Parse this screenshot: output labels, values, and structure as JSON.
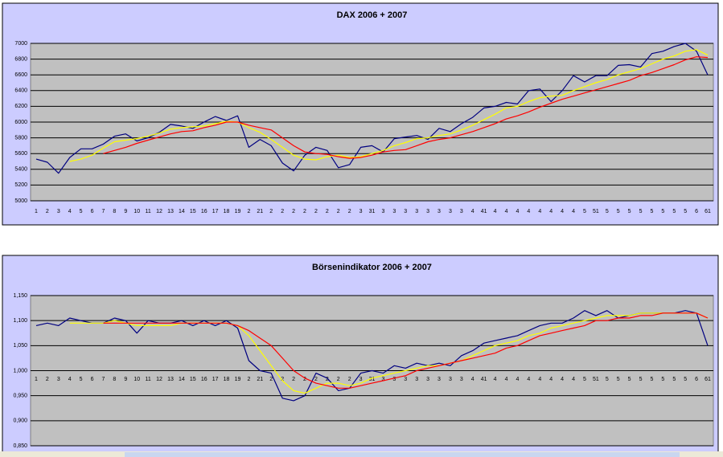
{
  "chart_data": [
    {
      "type": "line",
      "title": "DAX 2006 + 2007",
      "categories": [
        "1",
        "2",
        "3",
        "4",
        "5",
        "6",
        "7",
        "8",
        "9",
        "10",
        "11",
        "12",
        "13",
        "14",
        "15",
        "16",
        "17",
        "18",
        "19",
        "2",
        "21",
        "2",
        "2",
        "2",
        "2",
        "2",
        "2",
        "2",
        "2",
        "3",
        "31",
        "3",
        "3",
        "3",
        "3",
        "3",
        "3",
        "3",
        "3",
        "4",
        "41",
        "4",
        "4",
        "4",
        "4",
        "4",
        "4",
        "4",
        "4",
        "5",
        "51",
        "5",
        "5",
        "5",
        "5",
        "5",
        "5",
        "5",
        "5",
        "6",
        "61"
      ],
      "ylim": [
        5000,
        7000
      ],
      "yticks": [
        5000,
        5200,
        5400,
        5600,
        5800,
        6000,
        6200,
        6400,
        6600,
        6800,
        7000
      ],
      "grid": true,
      "series": [
        {
          "color": "#000080",
          "values": [
            5530,
            5490,
            5350,
            5550,
            5660,
            5660,
            5720,
            5820,
            5850,
            5760,
            5800,
            5870,
            5970,
            5950,
            5920,
            6000,
            6070,
            6020,
            6080,
            5680,
            5780,
            5700,
            5480,
            5380,
            5580,
            5680,
            5640,
            5420,
            5460,
            5680,
            5700,
            5620,
            5790,
            5810,
            5830,
            5780,
            5920,
            5880,
            5980,
            6060,
            6180,
            6200,
            6250,
            6230,
            6400,
            6420,
            6260,
            6400,
            6590,
            6510,
            6590,
            6590,
            6720,
            6730,
            6700,
            6870,
            6900,
            6960,
            7000,
            6900,
            6600
          ]
        },
        {
          "color": "#ffff00",
          "values": [
            null,
            null,
            null,
            5500,
            5530,
            5580,
            5670,
            5750,
            5770,
            5790,
            5820,
            5860,
            5910,
            5930,
            5940,
            5950,
            5980,
            6010,
            6000,
            5930,
            5870,
            5780,
            5680,
            5580,
            5530,
            5520,
            5560,
            5580,
            5550,
            5560,
            5600,
            5640,
            5700,
            5740,
            5790,
            5800,
            5830,
            5850,
            5900,
            5960,
            6030,
            6100,
            6180,
            6200,
            6260,
            6310,
            6330,
            6340,
            6400,
            6450,
            6500,
            6540,
            6600,
            6640,
            6680,
            6740,
            6800,
            6840,
            6900,
            6920,
            6850
          ]
        },
        {
          "color": "#ff0000",
          "values": [
            null,
            null,
            null,
            null,
            null,
            null,
            5600,
            5640,
            5680,
            5730,
            5770,
            5810,
            5850,
            5880,
            5890,
            5930,
            5960,
            6000,
            6000,
            5960,
            5930,
            5900,
            5800,
            5700,
            5620,
            5600,
            5590,
            5560,
            5540,
            5550,
            5580,
            5620,
            5640,
            5650,
            5700,
            5750,
            5780,
            5800,
            5840,
            5880,
            5930,
            5980,
            6040,
            6080,
            6130,
            6190,
            6240,
            6290,
            6330,
            6370,
            6410,
            6450,
            6490,
            6530,
            6590,
            6630,
            6680,
            6730,
            6790,
            6830,
            6820
          ]
        }
      ]
    },
    {
      "type": "line",
      "title": "Börsenindikator 2006 + 2007",
      "categories": [
        "1",
        "2",
        "3",
        "4",
        "5",
        "6",
        "7",
        "8",
        "9",
        "10",
        "11",
        "12",
        "13",
        "14",
        "15",
        "16",
        "17",
        "18",
        "19",
        "2",
        "21",
        "2",
        "2",
        "2",
        "2",
        "2",
        "2",
        "2",
        "2",
        "3",
        "31",
        "3",
        "3",
        "3",
        "3",
        "3",
        "3",
        "3",
        "3",
        "4",
        "41",
        "4",
        "4",
        "4",
        "4",
        "4",
        "4",
        "4",
        "4",
        "5",
        "51",
        "5",
        "5",
        "5",
        "5",
        "5",
        "5",
        "5",
        "5",
        "6",
        "61"
      ],
      "ylim": [
        0.85,
        1.15
      ],
      "yticks": [
        {
          "value": 0.85,
          "label": "0,850"
        },
        {
          "value": 0.9,
          "label": "0,900"
        },
        {
          "value": 0.95,
          "label": "0,950"
        },
        {
          "value": 1,
          "label": "1,000"
        },
        {
          "value": 1.05,
          "label": "1,050"
        },
        {
          "value": 1.1,
          "label": "1,100"
        },
        {
          "value": 1.15,
          "label": "1,150"
        }
      ],
      "grid": true,
      "series": [
        {
          "color": "#000080",
          "values": [
            1.09,
            1.095,
            1.09,
            1.105,
            1.1,
            1.095,
            1.095,
            1.105,
            1.1,
            1.075,
            1.1,
            1.095,
            1.095,
            1.1,
            1.09,
            1.1,
            1.09,
            1.1,
            1.085,
            1.02,
            1.0,
            0.995,
            0.945,
            0.94,
            0.95,
            0.995,
            0.985,
            0.96,
            0.965,
            0.995,
            1.0,
            0.995,
            1.01,
            1.005,
            1.015,
            1.01,
            1.015,
            1.01,
            1.03,
            1.04,
            1.055,
            1.06,
            1.065,
            1.07,
            1.08,
            1.09,
            1.095,
            1.095,
            1.105,
            1.12,
            1.11,
            1.12,
            1.105,
            1.11,
            1.115,
            1.115,
            1.115,
            1.115,
            1.12,
            1.115,
            1.05
          ]
        },
        {
          "color": "#ffff00",
          "values": [
            null,
            null,
            null,
            1.095,
            1.095,
            1.095,
            1.095,
            1.1,
            1.095,
            1.09,
            1.09,
            1.09,
            1.09,
            1.095,
            1.095,
            1.095,
            1.095,
            1.095,
            1.09,
            1.07,
            1.04,
            1.01,
            0.98,
            0.96,
            0.955,
            0.965,
            0.975,
            0.975,
            0.97,
            0.975,
            0.985,
            0.99,
            0.995,
            1.0,
            1.005,
            1.01,
            1.01,
            1.015,
            1.02,
            1.03,
            1.04,
            1.05,
            1.055,
            1.06,
            1.07,
            1.075,
            1.085,
            1.09,
            1.095,
            1.1,
            1.105,
            1.11,
            1.11,
            1.11,
            1.115,
            1.115,
            1.115,
            1.115,
            1.115,
            1.115,
            1.105
          ]
        },
        {
          "color": "#ff0000",
          "values": [
            null,
            null,
            null,
            null,
            null,
            null,
            1.095,
            1.095,
            1.095,
            1.095,
            1.095,
            1.095,
            1.095,
            1.095,
            1.095,
            1.095,
            1.095,
            1.095,
            1.09,
            1.08,
            1.065,
            1.05,
            1.025,
            1.0,
            0.985,
            0.975,
            0.97,
            0.965,
            0.965,
            0.97,
            0.975,
            0.98,
            0.985,
            0.99,
            1.0,
            1.005,
            1.01,
            1.015,
            1.02,
            1.025,
            1.03,
            1.035,
            1.045,
            1.05,
            1.06,
            1.07,
            1.075,
            1.08,
            1.085,
            1.09,
            1.1,
            1.1,
            1.105,
            1.105,
            1.11,
            1.11,
            1.115,
            1.115,
            1.115,
            1.115,
            1.105
          ]
        }
      ]
    }
  ]
}
